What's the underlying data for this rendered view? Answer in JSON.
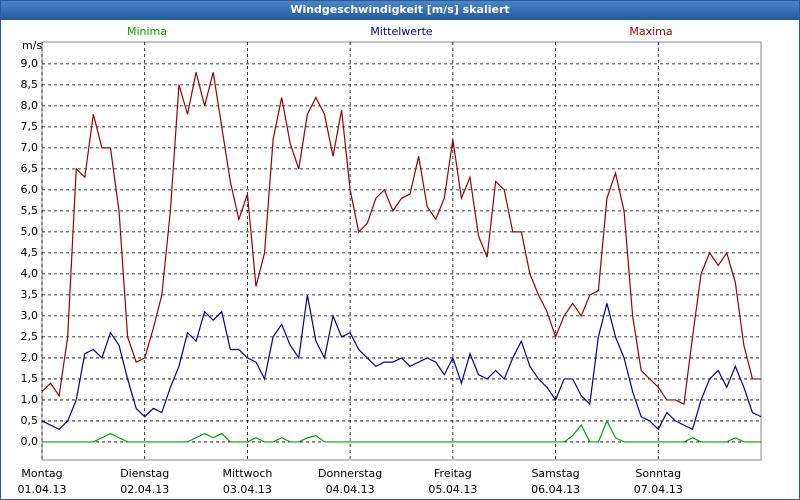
{
  "chart_data": {
    "type": "line",
    "title": "Windgeschwindigkeit [m/s] skaliert",
    "y_label": "m/s",
    "x": [
      0,
      2,
      4,
      6,
      8,
      10,
      12,
      14,
      16,
      18,
      20,
      22,
      24,
      26,
      28,
      30,
      32,
      34,
      36,
      38,
      40,
      42,
      44,
      46,
      48,
      50,
      52,
      54,
      56,
      58,
      60,
      62,
      64,
      66,
      68,
      70,
      72,
      74,
      76,
      78,
      80,
      82,
      84,
      86,
      88,
      90,
      92,
      94,
      96,
      98,
      100,
      102,
      104,
      106,
      108,
      110,
      112,
      114,
      116,
      118,
      120,
      122,
      124,
      126,
      128,
      130,
      132,
      134,
      136,
      138,
      140,
      142,
      144,
      146,
      148,
      150,
      152,
      154,
      156,
      158,
      160,
      162,
      164,
      166,
      168
    ],
    "series": [
      {
        "name": "Minima",
        "color": "#00a000",
        "values": [
          0,
          0,
          0,
          0,
          0,
          0,
          0,
          0.1,
          0.2,
          0.1,
          0,
          0,
          0,
          0,
          0,
          0,
          0,
          0,
          0.1,
          0.2,
          0.1,
          0.2,
          0,
          0,
          0,
          0.1,
          0,
          0,
          0.1,
          0,
          0,
          0.1,
          0.15,
          0,
          0,
          0,
          0,
          0,
          0,
          0,
          0,
          0,
          0,
          0,
          0,
          0,
          0,
          0,
          0,
          0,
          0,
          0,
          0,
          0,
          0,
          0,
          0,
          0,
          0,
          0,
          0,
          0,
          0.15,
          0.4,
          0,
          0,
          0.5,
          0.1,
          0,
          0,
          0,
          0,
          0,
          0,
          0,
          0,
          0.1,
          0,
          0,
          0,
          0,
          0.1,
          0,
          0,
          0
        ]
      },
      {
        "name": "Mittelwerte",
        "color": "#000099",
        "values": [
          0.5,
          0.4,
          0.3,
          0.5,
          1.0,
          2.1,
          2.2,
          2.0,
          2.6,
          2.3,
          1.5,
          0.8,
          0.6,
          0.8,
          0.7,
          1.3,
          1.8,
          2.6,
          2.4,
          3.1,
          2.9,
          3.1,
          2.2,
          2.2,
          2.0,
          1.9,
          1.5,
          2.5,
          2.8,
          2.3,
          2.0,
          3.5,
          2.4,
          2.0,
          3.0,
          2.5,
          2.6,
          2.2,
          2.0,
          1.8,
          1.9,
          1.9,
          2.0,
          1.8,
          1.9,
          2.0,
          1.9,
          1.6,
          2.0,
          1.4,
          2.1,
          1.6,
          1.5,
          1.7,
          1.5,
          2.0,
          2.4,
          1.8,
          1.5,
          1.3,
          1.0,
          1.5,
          1.5,
          1.1,
          0.9,
          2.5,
          3.3,
          2.5,
          2.0,
          1.2,
          0.6,
          0.5,
          0.3,
          0.7,
          0.5,
          0.4,
          0.3,
          1.0,
          1.5,
          1.7,
          1.3,
          1.8,
          1.3,
          0.7,
          0.6
        ]
      },
      {
        "name": "Maxima",
        "color": "#990000",
        "values": [
          1.2,
          1.4,
          1.1,
          2.5,
          6.5,
          6.3,
          7.8,
          7.0,
          7.0,
          5.5,
          2.5,
          1.9,
          2.0,
          2.7,
          3.5,
          5.5,
          8.5,
          7.8,
          8.8,
          8.0,
          8.8,
          7.5,
          6.2,
          5.3,
          5.9,
          3.7,
          4.5,
          7.2,
          8.2,
          7.1,
          6.5,
          7.8,
          8.2,
          7.8,
          6.8,
          7.9,
          6.0,
          5.0,
          5.2,
          5.8,
          6.0,
          5.5,
          5.8,
          5.9,
          6.8,
          5.6,
          5.3,
          5.8,
          7.2,
          5.8,
          6.3,
          4.9,
          4.4,
          6.2,
          6.0,
          5.0,
          5.0,
          4.0,
          3.5,
          3.1,
          2.5,
          3.0,
          3.3,
          3.0,
          3.5,
          3.6,
          5.8,
          6.4,
          5.5,
          3.0,
          1.7,
          1.5,
          1.3,
          1.0,
          1.0,
          0.9,
          2.5,
          4.0,
          4.5,
          4.2,
          4.5,
          3.8,
          2.3,
          1.5,
          1.5
        ]
      }
    ],
    "xlim": [
      0,
      168
    ],
    "xticks": [
      {
        "value": 0,
        "label": "Montag"
      },
      {
        "value": 24,
        "label": "Dienstag"
      },
      {
        "value": 48,
        "label": "Mittwoch"
      },
      {
        "value": 72,
        "label": "Donnerstag"
      },
      {
        "value": 96,
        "label": "Freitag"
      },
      {
        "value": 120,
        "label": "Samstag"
      },
      {
        "value": 144,
        "label": "Sonntag"
      }
    ],
    "xtick_dates": [
      "01.04.13",
      "02.04.13",
      "03.04.13",
      "04.04.13",
      "05.04.13",
      "06.04.13",
      "07.04.13"
    ],
    "ylim": [
      -0.43,
      9.52
    ],
    "yticks": [
      {
        "value": 0,
        "label": "0,0"
      },
      {
        "value": 0.5,
        "label": "0,5"
      },
      {
        "value": 1,
        "label": "1,0"
      },
      {
        "value": 1.5,
        "label": "1,5"
      },
      {
        "value": 2,
        "label": "2,0"
      },
      {
        "value": 2.5,
        "label": "2,5"
      },
      {
        "value": 3,
        "label": "3,0"
      },
      {
        "value": 3.5,
        "label": "3,5"
      },
      {
        "value": 4,
        "label": "4,0"
      },
      {
        "value": 4.5,
        "label": "4,5"
      },
      {
        "value": 5,
        "label": "5,0"
      },
      {
        "value": 5.5,
        "label": "5,5"
      },
      {
        "value": 6,
        "label": "6,0"
      },
      {
        "value": 6.5,
        "label": "6,5"
      },
      {
        "value": 7,
        "label": "7,0"
      },
      {
        "value": 7.5,
        "label": "7,5"
      },
      {
        "value": 8,
        "label": "8,0"
      },
      {
        "value": 8.5,
        "label": "8,5"
      },
      {
        "value": 9,
        "label": "9,0"
      }
    ],
    "grid": true
  }
}
